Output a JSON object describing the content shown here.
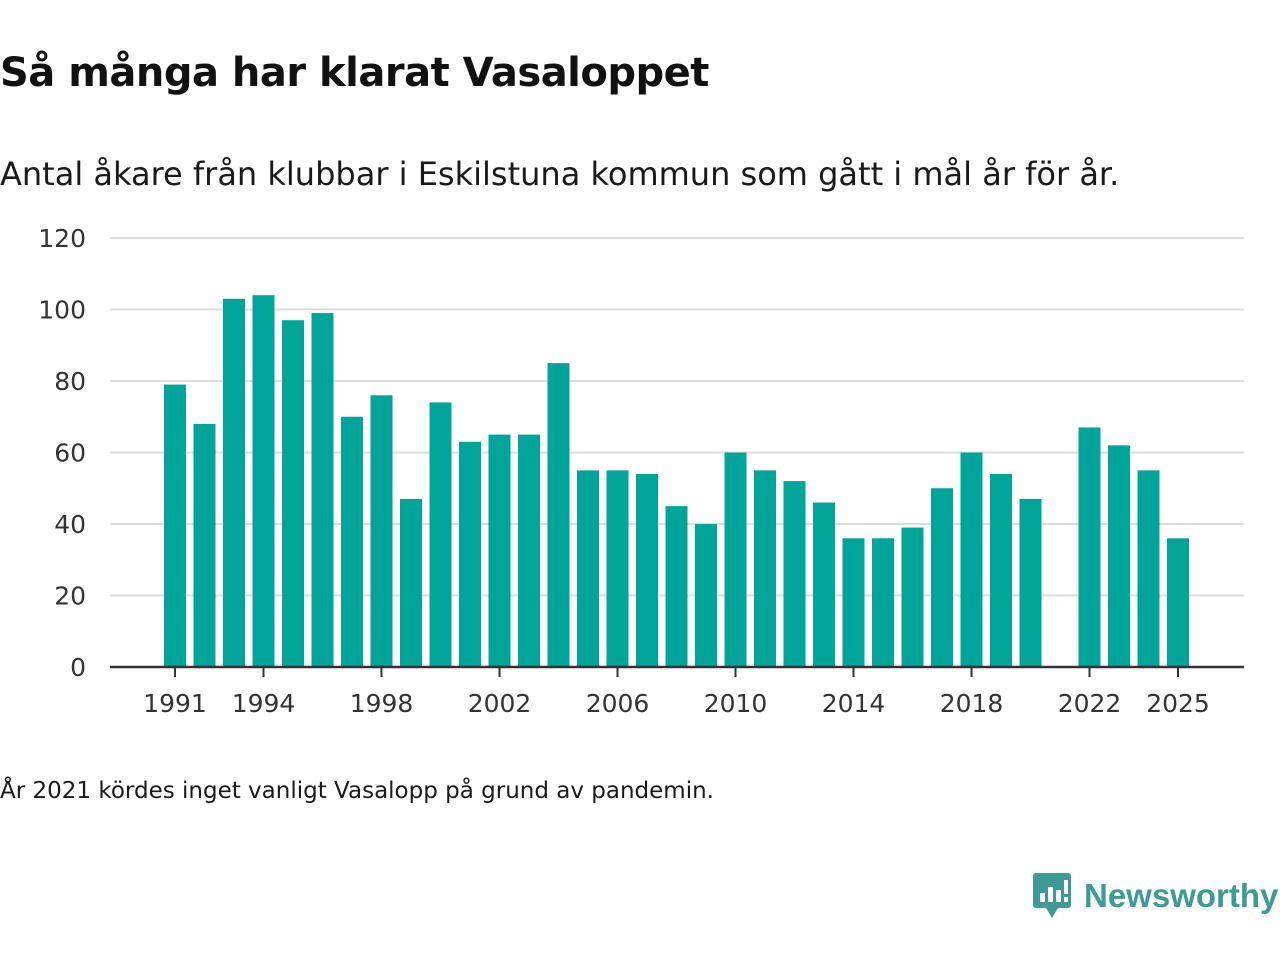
{
  "header": {
    "title": "Så många har klarat Vasaloppet",
    "subtitle": "Antal åkare från klubbar i Eskilstuna kommun som gått i mål år för år."
  },
  "footer": {
    "note": "År 2021 kördes inget vanligt Vasalopp på grund av pandemin.",
    "brand_name": "Newsworthy",
    "brand_icon": "newsworthy-logo-icon"
  },
  "colors": {
    "bar": "#00a499",
    "grid": "#dddddd",
    "axis": "#333333",
    "brand": "#3d9a95"
  },
  "chart_data": {
    "type": "bar",
    "title": "Så många har klarat Vasaloppet",
    "subtitle": "Antal åkare från klubbar i Eskilstuna kommun som gått i mål år för år.",
    "xlabel": "",
    "ylabel": "",
    "ylim": [
      0,
      120
    ],
    "yticks": [
      0,
      20,
      40,
      60,
      80,
      100,
      120
    ],
    "grid": true,
    "legend": "none",
    "xtick_labels": [
      "1991",
      "1994",
      "1998",
      "2002",
      "2006",
      "2010",
      "2014",
      "2018",
      "2022",
      "2025"
    ],
    "categories": [
      1991,
      1992,
      1993,
      1994,
      1995,
      1996,
      1997,
      1998,
      1999,
      2000,
      2001,
      2002,
      2003,
      2004,
      2005,
      2006,
      2007,
      2008,
      2009,
      2010,
      2011,
      2012,
      2013,
      2014,
      2015,
      2016,
      2017,
      2018,
      2019,
      2020,
      2021,
      2022,
      2023,
      2024,
      2025
    ],
    "values": [
      79,
      68,
      103,
      104,
      97,
      99,
      70,
      76,
      47,
      74,
      63,
      65,
      65,
      85,
      55,
      55,
      54,
      45,
      40,
      60,
      55,
      52,
      46,
      36,
      36,
      39,
      50,
      60,
      54,
      47,
      null,
      67,
      62,
      55,
      36
    ]
  }
}
